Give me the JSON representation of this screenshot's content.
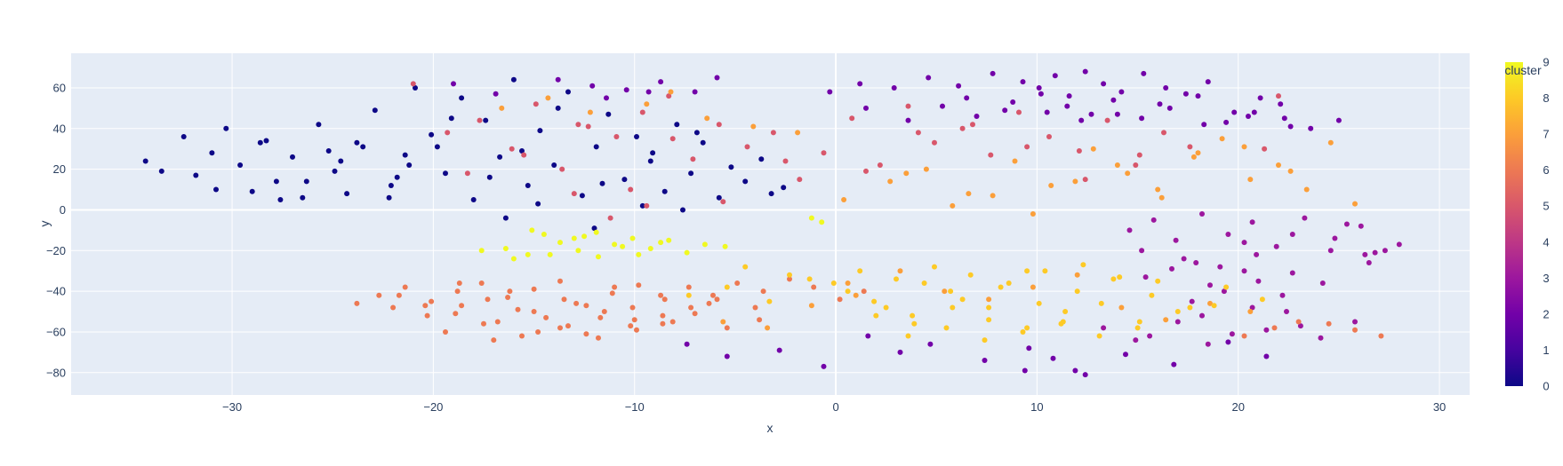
{
  "chart_data": {
    "type": "scatter",
    "title": "",
    "xlabel": "x",
    "ylabel": "y",
    "xlim": [
      -38,
      31.5
    ],
    "ylim": [
      -91,
      77
    ],
    "x_ticks": [
      -30,
      -20,
      -10,
      0,
      10,
      20,
      30
    ],
    "y_ticks": [
      -80,
      -60,
      -40,
      -20,
      0,
      20,
      40,
      60
    ],
    "grid": true,
    "colorbar": {
      "title": "cluster",
      "range": [
        0,
        9
      ],
      "ticks": [
        0,
        1,
        2,
        3,
        4,
        5,
        6,
        7,
        8,
        9
      ],
      "colorscale": [
        "#0d0887",
        "#46039f",
        "#7201a8",
        "#9c179e",
        "#bd3786",
        "#d8576b",
        "#ed7953",
        "#fb9f3a",
        "#fdca26",
        "#f0f921"
      ]
    },
    "marker_size": 5,
    "clusters": [
      {
        "cluster": 0,
        "x": [
          -34.3,
          -33.5,
          -32.4,
          -31.8,
          -31.0,
          -30.3,
          -29.6,
          -29.0,
          -28.3,
          -27.6,
          -27.0,
          -26.3,
          -25.7,
          -24.9,
          -24.3,
          -23.5,
          -22.9,
          -22.1,
          -21.4,
          -20.9,
          -20.1,
          -19.4,
          -18.6,
          -18.0,
          -17.4,
          -16.7,
          -16.0,
          -15.3,
          -14.7,
          -14.0,
          -13.3,
          -12.6,
          -11.9,
          -11.3,
          -10.5,
          -9.9,
          -9.2,
          -8.5,
          -7.9,
          -7.2,
          -6.6,
          -5.8,
          -5.2,
          -4.5,
          -3.7,
          -3.2,
          -2.6,
          -16.4,
          -14.8,
          -12.0,
          -9.6,
          -7.6,
          -6.9,
          -26.5,
          -23.8,
          -21.2,
          -19.1,
          -17.2,
          -15.6,
          -13.8,
          -11.6,
          -9.1,
          -27.8,
          -24.6,
          -22.2,
          -19.8,
          -30.8,
          -28.6,
          -25.2,
          -21.8
        ],
        "y": [
          24,
          19,
          36,
          17,
          28,
          40,
          22,
          9,
          34,
          5,
          26,
          14,
          42,
          19,
          8,
          31,
          49,
          12,
          27,
          60,
          37,
          18,
          55,
          5,
          44,
          26,
          64,
          12,
          39,
          22,
          58,
          7,
          31,
          47,
          15,
          36,
          24,
          9,
          42,
          18,
          33,
          6,
          21,
          14,
          25,
          8,
          11,
          -4,
          3,
          -9,
          2,
          0,
          38,
          6,
          33,
          22,
          45,
          16,
          29,
          50,
          13,
          28,
          14,
          24,
          6,
          31,
          10,
          33,
          29,
          16
        ]
      },
      {
        "cluster": 2,
        "x": [
          -13.8,
          -12.1,
          -10.4,
          -8.7,
          -7.0,
          -5.9,
          -16.9,
          -19.0,
          -11.4,
          -9.3,
          -0.3,
          1.2,
          2.9,
          4.6,
          6.1,
          7.8,
          9.3,
          10.1,
          10.9,
          11.6,
          12.4,
          13.3,
          14.2,
          15.3,
          16.4,
          17.4,
          18.5,
          19.8,
          21.1,
          22.3,
          1.5,
          3.6,
          5.3,
          7.0,
          8.8,
          10.5,
          12.2,
          14.0,
          16.1,
          18.3,
          20.5,
          22.6,
          6.5,
          8.4,
          10.2,
          11.5,
          12.7,
          13.8,
          15.2,
          16.6,
          18.0,
          19.4,
          20.8,
          22.1,
          23.6,
          25.0,
          1.6,
          3.2,
          4.7,
          7.4,
          9.6,
          11.9,
          14.4,
          16.8,
          19.5,
          21.4,
          -7.4,
          -5.4,
          -2.8,
          -0.6,
          9.4,
          10.8,
          12.4
        ],
        "y": [
          64,
          61,
          59,
          63,
          58,
          65,
          57,
          62,
          55,
          58,
          58,
          62,
          60,
          65,
          61,
          67,
          63,
          60,
          66,
          56,
          68,
          62,
          58,
          67,
          60,
          57,
          63,
          48,
          55,
          45,
          50,
          44,
          51,
          46,
          53,
          48,
          44,
          47,
          52,
          42,
          46,
          41,
          55,
          49,
          57,
          51,
          47,
          54,
          45,
          50,
          56,
          43,
          48,
          52,
          40,
          44,
          -62,
          -70,
          -66,
          -74,
          -68,
          -79,
          -71,
          -76,
          -65,
          -72,
          -66,
          -72,
          -69,
          -77,
          -79,
          -73,
          -81
        ]
      },
      {
        "cluster": 3,
        "x": [
          14.6,
          15.8,
          16.9,
          18.2,
          19.5,
          20.7,
          21.9,
          23.3,
          24.8,
          26.1,
          27.3,
          28.0,
          17.3,
          19.1,
          20.9,
          22.7,
          24.6,
          26.5,
          15.4,
          16.7,
          18.6,
          20.3,
          22.2,
          24.2,
          26.3,
          18.2,
          20.7,
          23.1,
          25.8,
          15.6,
          18.5,
          21.4,
          24.1,
          26.8,
          13.3,
          14.9,
          17.0,
          19.7,
          22.4,
          17.7,
          19.3,
          21.0,
          15.2,
          17.9,
          20.3,
          22.7,
          25.4
        ],
        "y": [
          -10,
          -5,
          -15,
          -2,
          -12,
          -6,
          -18,
          -4,
          -14,
          -8,
          -20,
          -17,
          -24,
          -28,
          -22,
          -31,
          -20,
          -26,
          -33,
          -29,
          -37,
          -30,
          -42,
          -36,
          -22,
          -52,
          -48,
          -57,
          -55,
          -62,
          -66,
          -59,
          -63,
          -21,
          -58,
          -64,
          -55,
          -61,
          -50,
          -45,
          -40,
          -35,
          -20,
          -26,
          -16,
          -12,
          -7
        ]
      },
      {
        "cluster": 5,
        "x": [
          -21.0,
          -19.3,
          -17.7,
          -16.1,
          -14.9,
          -13.6,
          -12.3,
          -10.9,
          -9.6,
          -8.3,
          -7.1,
          -5.8,
          -4.4,
          -3.1,
          -1.8,
          -0.6,
          0.8,
          2.2,
          3.6,
          4.9,
          6.3,
          7.7,
          9.1,
          10.6,
          12.1,
          13.5,
          14.9,
          16.3,
          17.6,
          -18.3,
          -15.5,
          -12.8,
          -10.2,
          -8.1,
          -5.6,
          -2.5,
          1.5,
          4.1,
          6.8,
          9.5,
          12.4,
          15.1,
          22.0,
          21.3,
          -13.0,
          -11.2,
          -9.4
        ],
        "y": [
          62,
          38,
          44,
          30,
          52,
          20,
          41,
          36,
          48,
          56,
          25,
          42,
          31,
          38,
          15,
          28,
          45,
          22,
          51,
          33,
          40,
          27,
          48,
          36,
          29,
          44,
          22,
          38,
          31,
          18,
          27,
          42,
          10,
          35,
          4,
          24,
          19,
          38,
          42,
          31,
          15,
          27,
          56,
          30,
          8,
          -4,
          2
        ]
      },
      {
        "cluster": 6,
        "x": [
          -23.8,
          -22.7,
          -21.4,
          -20.1,
          -18.8,
          -17.6,
          -16.3,
          -15.0,
          -13.7,
          -12.4,
          -11.1,
          -9.8,
          -8.5,
          -7.3,
          -6.1,
          -4.9,
          -3.6,
          -2.3,
          -1.1,
          0.2,
          1.4,
          -22.0,
          -20.3,
          -18.6,
          -16.8,
          -15.0,
          -13.3,
          -11.7,
          -10.1,
          -8.6,
          -7.0,
          -5.4,
          -3.8,
          -19.4,
          -17.5,
          -15.6,
          -13.7,
          -11.8,
          -9.9,
          -8.1,
          -17.0,
          -14.8,
          -12.4,
          -10.2,
          -18.7,
          -16.2,
          -13.5,
          -11.0,
          -8.7,
          -6.3,
          -4.0,
          20.3,
          21.8,
          23.0,
          24.5,
          25.8,
          27.1,
          -21.7,
          -20.4,
          -18.9,
          -17.3,
          -15.8,
          -14.4,
          -12.9,
          -11.5,
          -10.0,
          -8.6,
          -7.2,
          -5.9
        ],
        "y": [
          -46,
          -42,
          -38,
          -45,
          -40,
          -36,
          -43,
          -39,
          -35,
          -47,
          -41,
          -37,
          -44,
          -38,
          -42,
          -36,
          -40,
          -34,
          -38,
          -44,
          -40,
          -48,
          -52,
          -47,
          -55,
          -50,
          -57,
          -53,
          -48,
          -56,
          -51,
          -58,
          -54,
          -60,
          -56,
          -62,
          -58,
          -63,
          -59,
          -55,
          -64,
          -60,
          -61,
          -57,
          -36,
          -40,
          -44,
          -38,
          -42,
          -46,
          -48,
          -62,
          -58,
          -55,
          -56,
          -59,
          -62,
          -42,
          -47,
          -51,
          -44,
          -49,
          -53,
          -46,
          -50,
          -54,
          -52,
          -48,
          -44
        ]
      },
      {
        "cluster": 7,
        "x": [
          -16.6,
          -14.3,
          -12.2,
          -9.4,
          -8.2,
          -6.4,
          -4.1,
          -1.9,
          0.4,
          2.7,
          4.5,
          6.6,
          8.9,
          10.7,
          12.8,
          14.5,
          16.2,
          17.8,
          19.2,
          20.6,
          22.0,
          23.4,
          24.6,
          25.8,
          3.5,
          5.8,
          7.8,
          9.8,
          11.9,
          14.0,
          16.0,
          18.0,
          20.3,
          22.6,
          -5.6,
          -3.4,
          -1.2,
          1.0,
          0.6,
          3.2,
          5.4,
          7.6,
          9.8,
          12.0,
          14.2,
          16.4,
          18.6,
          20.6
        ],
        "y": [
          50,
          55,
          48,
          52,
          58,
          45,
          41,
          38,
          5,
          14,
          20,
          8,
          24,
          12,
          30,
          18,
          6,
          26,
          35,
          15,
          22,
          10,
          33,
          3,
          18,
          2,
          7,
          -2,
          14,
          22,
          10,
          28,
          31,
          19,
          -55,
          -58,
          -47,
          -42,
          -36,
          -30,
          -40,
          -44,
          -38,
          -32,
          -48,
          -54,
          -46,
          -50
        ]
      },
      {
        "cluster": 8,
        "x": [
          -7.3,
          -5.4,
          -3.3,
          -1.3,
          0.6,
          2.5,
          4.4,
          6.3,
          8.2,
          10.1,
          12.0,
          13.8,
          15.7,
          17.6,
          19.4,
          21.2,
          2.0,
          3.9,
          5.8,
          7.6,
          9.5,
          11.4,
          13.2,
          15.1,
          17.0,
          18.8,
          1.2,
          3.0,
          4.9,
          6.7,
          8.6,
          10.4,
          12.3,
          14.1,
          16.0,
          3.6,
          5.5,
          7.4,
          9.3,
          11.2,
          13.1,
          15.0,
          -4.5,
          -2.3,
          -0.1,
          1.9,
          3.8,
          5.7,
          7.6,
          9.5,
          11.3
        ],
        "y": [
          -42,
          -38,
          -45,
          -34,
          -40,
          -48,
          -36,
          -44,
          -38,
          -46,
          -40,
          -34,
          -42,
          -48,
          -38,
          -44,
          -52,
          -56,
          -48,
          -54,
          -58,
          -50,
          -46,
          -55,
          -50,
          -47,
          -30,
          -34,
          -28,
          -32,
          -36,
          -30,
          -27,
          -33,
          -35,
          -62,
          -58,
          -64,
          -60,
          -56,
          -62,
          -58,
          -28,
          -32,
          -36,
          -45,
          -52,
          -40,
          -48,
          -30,
          -55
        ]
      },
      {
        "cluster": 9,
        "x": [
          -17.6,
          -16.4,
          -15.3,
          -14.5,
          -13.7,
          -12.8,
          -11.9,
          -11.0,
          -10.1,
          -9.2,
          -8.3,
          -7.4,
          -6.5,
          -5.5,
          -14.2,
          -13.0,
          -11.8,
          -10.6,
          -15.1,
          -12.5,
          -9.8,
          -8.7,
          -16.0,
          -1.2,
          -0.7
        ],
        "y": [
          -20,
          -19,
          -22,
          -12,
          -16,
          -20,
          -11,
          -17,
          -14,
          -19,
          -15,
          -21,
          -17,
          -18,
          -22,
          -14,
          -23,
          -18,
          -10,
          -13,
          -22,
          -16,
          -24,
          -4,
          -6
        ]
      }
    ]
  }
}
